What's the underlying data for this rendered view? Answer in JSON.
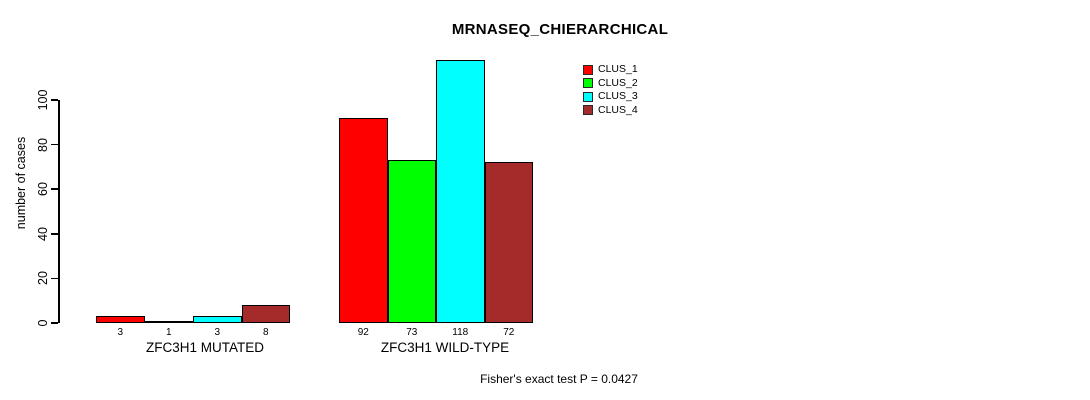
{
  "chart_data": {
    "type": "bar",
    "title": "MRNASEQ_CHIERARCHICAL",
    "xlabel": "",
    "ylabel": "number of cases",
    "ylim": [
      0,
      120
    ],
    "yticks": [
      0,
      20,
      40,
      60,
      80,
      100
    ],
    "grid": false,
    "legend_position": "top-right",
    "categories": [
      "ZFC3H1 MUTATED",
      "ZFC3H1 WILD-TYPE"
    ],
    "series": [
      {
        "name": "CLUS_1",
        "color": "#FF0000",
        "values": [
          3,
          92
        ]
      },
      {
        "name": "CLUS_2",
        "color": "#00FF00",
        "values": [
          1,
          73
        ]
      },
      {
        "name": "CLUS_3",
        "color": "#00FFFF",
        "values": [
          3,
          118
        ]
      },
      {
        "name": "CLUS_4",
        "color": "#A52A2A",
        "values": [
          8,
          72
        ]
      }
    ],
    "bar_value_labels": [
      [
        3,
        1,
        3,
        8
      ],
      [
        92,
        73,
        118,
        72
      ]
    ],
    "annotation": "Fisher's exact test P = 0.0427"
  }
}
